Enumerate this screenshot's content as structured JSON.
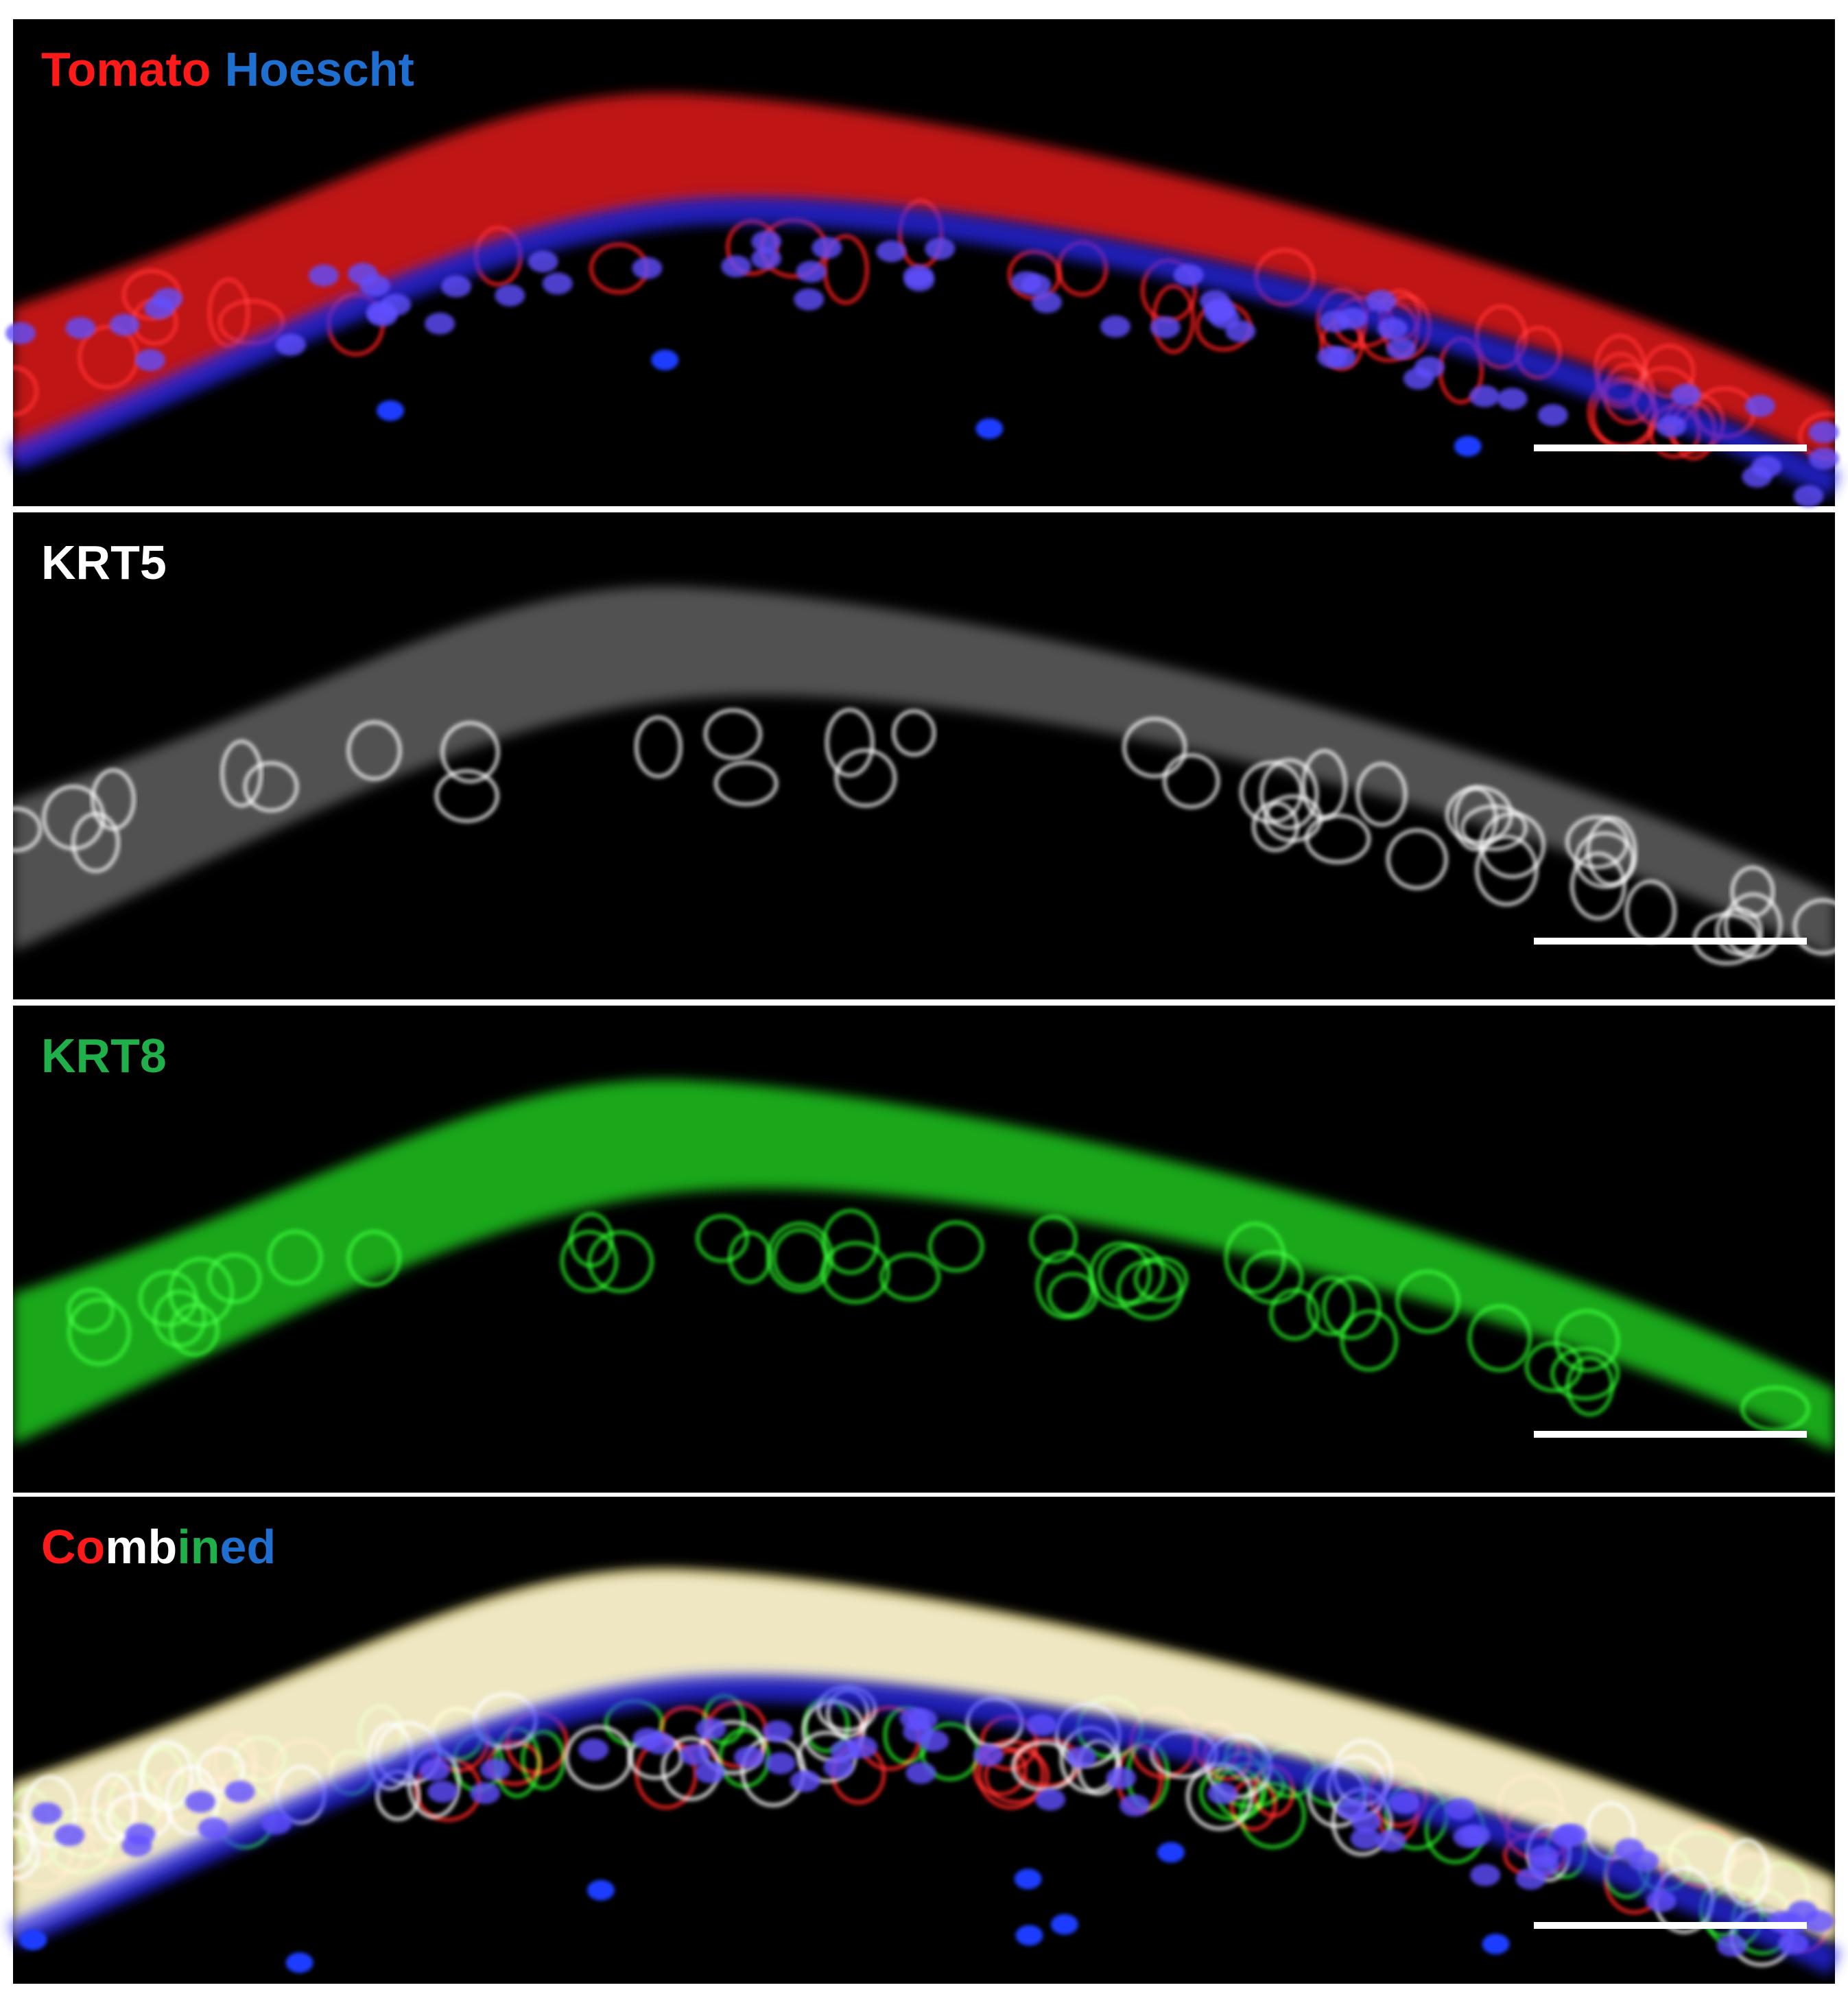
{
  "panels": [
    {
      "label": [
        [
          {
            "text": "Tomato",
            "color": "#ff1a1a"
          }
        ],
        [
          {
            "text": "Hoescht",
            "color": "#1f6fd0"
          }
        ]
      ]
    },
    {
      "label": [
        [
          {
            "text": "KRT5",
            "color": "#ffffff"
          }
        ]
      ]
    },
    {
      "label": [
        [
          {
            "text": "KRT8",
            "color": "#1fb04a"
          }
        ]
      ]
    },
    {
      "label": [
        [
          {
            "text": "Co",
            "color": "#ff1a1a"
          },
          {
            "text": "mb",
            "color": "#ffffff"
          },
          {
            "text": "in",
            "color": "#1fb04a"
          },
          {
            "text": "ed",
            "color": "#1f6fd0"
          }
        ]
      ]
    }
  ]
}
